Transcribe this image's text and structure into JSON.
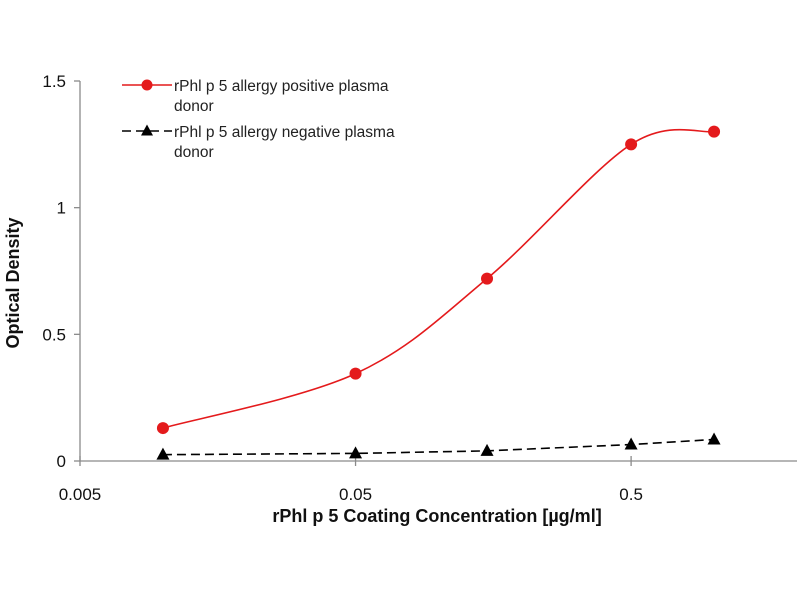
{
  "chart_data": {
    "type": "line",
    "title": "",
    "xlabel": "rPhl p 5 Coating Concentration [µg/ml]",
    "ylabel": "Optical Density",
    "xscale": "log",
    "xlim": [
      0.005,
      2.0
    ],
    "ylim": [
      0,
      1.5
    ],
    "x_ticks": [
      0.005,
      0.05,
      0.5
    ],
    "x_tick_labels": [
      "0.005",
      "0.05",
      "0.5"
    ],
    "y_ticks": [
      0,
      0.5,
      1,
      1.5
    ],
    "y_tick_labels": [
      "0",
      "0.5",
      "1",
      "1.5"
    ],
    "grid": false,
    "legend_position": "top-left",
    "series": [
      {
        "name": "rPhl p 5 allergy positive plasma donor",
        "legend_lines": [
          "rPhl p 5 allergy positive plasma",
          "donor"
        ],
        "color": "#e41a1c",
        "marker": "circle",
        "line_style": "solid",
        "smooth": true,
        "x": [
          0.01,
          0.05,
          0.15,
          0.5,
          1.0
        ],
        "y": [
          0.13,
          0.345,
          0.72,
          1.25,
          1.3
        ]
      },
      {
        "name": "rPhl p 5 allergy negative plasma donor",
        "legend_lines": [
          "rPhl p 5 allergy negative plasma",
          "donor"
        ],
        "color": "#000000",
        "marker": "triangle",
        "line_style": "dashed",
        "smooth": false,
        "x": [
          0.01,
          0.05,
          0.15,
          0.5,
          1.0
        ],
        "y": [
          0.025,
          0.03,
          0.04,
          0.065,
          0.085
        ]
      }
    ]
  }
}
